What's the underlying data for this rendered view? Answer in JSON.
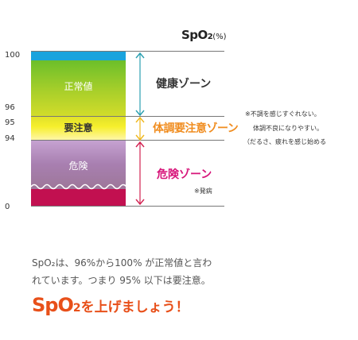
{
  "header": {
    "title": "SpO",
    "title_subscript": "2",
    "unit": "(%)"
  },
  "axis": {
    "ticks": [
      "100",
      "96",
      "95",
      "94",
      "0"
    ]
  },
  "bars": {
    "normal_label": "正常値",
    "caution_label": "要注意",
    "danger_label": "危険"
  },
  "zones": {
    "health": "健康ゾーン",
    "caution": "体調要注意ゾーン",
    "danger": "危険ゾーン",
    "onset_note": "※発病"
  },
  "notes": [
    "※不調を感じすぐれない。",
    "体調不良になりやすい。",
    "（だるさ、疲れを感じ始める"
  ],
  "description": {
    "line1": "SpO₂は、96%から100% が正常値と言わ",
    "line2": "れています。つまり 95% 以下は要注意。"
  },
  "cta": {
    "prefix": "SpO",
    "subscript": "2",
    "suffix": "を上げましょう！"
  },
  "colors": {
    "blue_band": "#1aa3dd",
    "green_band": "#a8cf2a",
    "yellow_band": "#f6ef2c",
    "purple_band": "#a87fb0",
    "crimson_band": "#c21050",
    "teal_arrow": "#2a9fb0",
    "orange": "#f08c1e",
    "magenta": "#d7157a",
    "cta_orange": "#e8501a"
  }
}
